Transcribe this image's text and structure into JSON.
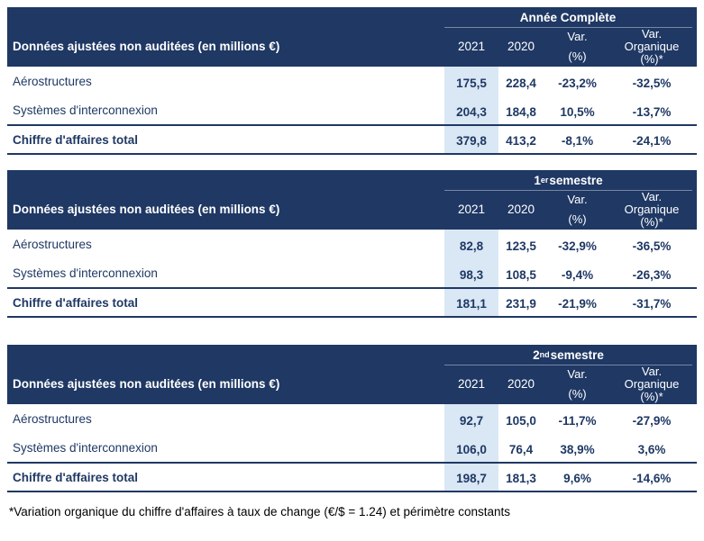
{
  "colors": {
    "header_background": "#1F3864",
    "highlight_2021_column": "#DAE7F4",
    "data_text": "#1F3864",
    "footnote_text": "#000000"
  },
  "column_headers": {
    "label": "Données ajustées non auditées (en millions €)",
    "y2021": "2021",
    "y2020": "2020",
    "var_l1": "Var.",
    "var_l2": "(%)",
    "org_l1": "Var.",
    "org_l2": "Organique",
    "org_l3": "(%)*"
  },
  "tables": [
    {
      "period": {
        "pre": "Année Complète",
        "sup": "",
        "post": ""
      },
      "rows": [
        {
          "label": "Aérostructures",
          "v2021": "175,5",
          "v2020": "228,4",
          "var": "-23,2%",
          "org": "-32,5%"
        },
        {
          "label": "Systèmes d'interconnexion",
          "v2021": "204,3",
          "v2020": "184,8",
          "var": "10,5%",
          "org": "-13,7%"
        }
      ],
      "total": {
        "label": "Chiffre d'affaires total",
        "v2021": "379,8",
        "v2020": "413,2",
        "var": "-8,1%",
        "org": "-24,1%"
      }
    },
    {
      "period": {
        "pre": "1",
        "sup": "er",
        "post": " semestre"
      },
      "rows": [
        {
          "label": "Aérostructures",
          "v2021": "82,8",
          "v2020": "123,5",
          "var": "-32,9%",
          "org": "-36,5%"
        },
        {
          "label": "Systèmes d'interconnexion",
          "v2021": "98,3",
          "v2020": "108,5",
          "var": "-9,4%",
          "org": "-26,3%"
        }
      ],
      "total": {
        "label": "Chiffre d'affaires total",
        "v2021": "181,1",
        "v2020": "231,9",
        "var": "-21,9%",
        "org": "-31,7%"
      }
    },
    {
      "period": {
        "pre": "2",
        "sup": "nd",
        "post": " semestre"
      },
      "rows": [
        {
          "label": "Aérostructures",
          "v2021": "92,7",
          "v2020": "105,0",
          "var": "-11,7%",
          "org": "-27,9%"
        },
        {
          "label": "Systèmes d'interconnexion",
          "v2021": "106,0",
          "v2020": "76,4",
          "var": "38,9%",
          "org": "3,6%"
        }
      ],
      "total": {
        "label": "Chiffre d'affaires total",
        "v2021": "198,7",
        "v2020": "181,3",
        "var": "9,6%",
        "org": "-14,6%"
      }
    }
  ],
  "footnote": "*Variation organique du chiffre d'affaires à taux de change (€/$ = 1.24) et périmètre constants"
}
